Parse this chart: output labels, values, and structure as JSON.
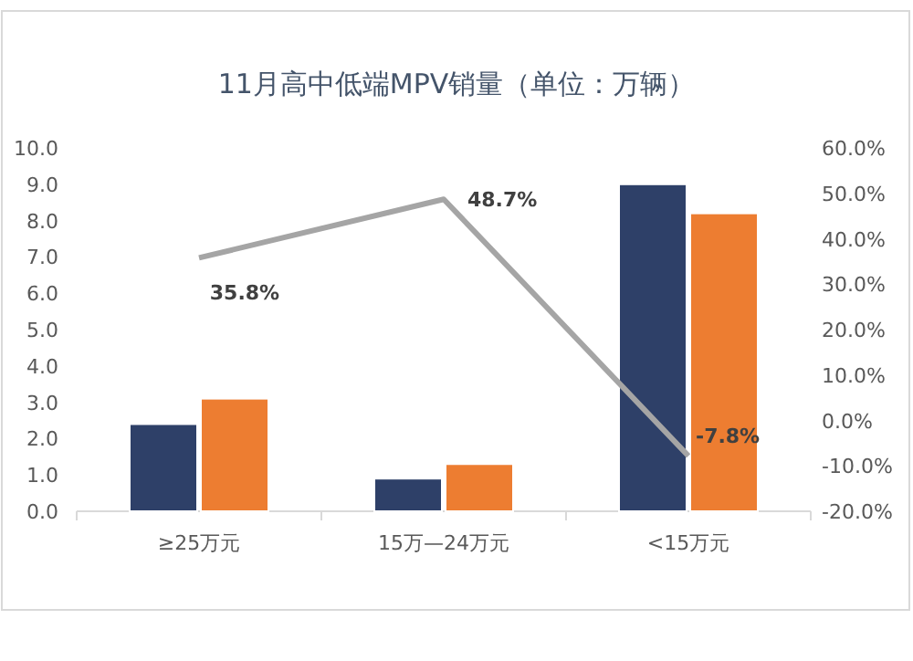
{
  "chart_data": {
    "type": "bar",
    "title": "11月高中低端MPV销量（单位：万辆）",
    "categories": [
      "≥25万元",
      "15万—24万元",
      "<15万元"
    ],
    "series": [
      {
        "color": "#2e4068",
        "values": [
          2.4,
          0.9,
          9.0
        ]
      },
      {
        "color": "#ed7d31",
        "values": [
          3.1,
          1.3,
          8.2
        ]
      },
      {
        "type": "line",
        "axis": "y2",
        "color": "#a5a5a5",
        "values": [
          35.8,
          48.7,
          -7.8
        ],
        "value_labels": [
          "35.8%",
          "48.7%",
          "-7.8%"
        ]
      }
    ],
    "ylim": [
      0,
      10
    ],
    "yticks": [
      {
        "value": 0,
        "label": "0.0"
      },
      {
        "value": 1,
        "label": "1.0"
      },
      {
        "value": 2,
        "label": "2.0"
      },
      {
        "value": 3,
        "label": "3.0"
      },
      {
        "value": 4,
        "label": "4.0"
      },
      {
        "value": 5,
        "label": "5.0"
      },
      {
        "value": 6,
        "label": "6.0"
      },
      {
        "value": 7,
        "label": "7.0"
      },
      {
        "value": 8,
        "label": "8.0"
      },
      {
        "value": 9,
        "label": "9.0"
      },
      {
        "value": 10,
        "label": "10.0"
      }
    ],
    "y2lim": [
      -20,
      60
    ],
    "y2ticks": [
      {
        "value": -20,
        "label": "-20.0%"
      },
      {
        "value": -10,
        "label": "-10.0%"
      },
      {
        "value": 0,
        "label": "0.0%"
      },
      {
        "value": 10,
        "label": "10.0%"
      },
      {
        "value": 20,
        "label": "20.0%"
      },
      {
        "value": 30,
        "label": "30.0%"
      },
      {
        "value": 40,
        "label": "40.0%"
      },
      {
        "value": 50,
        "label": "50.0%"
      },
      {
        "value": 60,
        "label": "60.0%"
      }
    ],
    "grid": false
  }
}
